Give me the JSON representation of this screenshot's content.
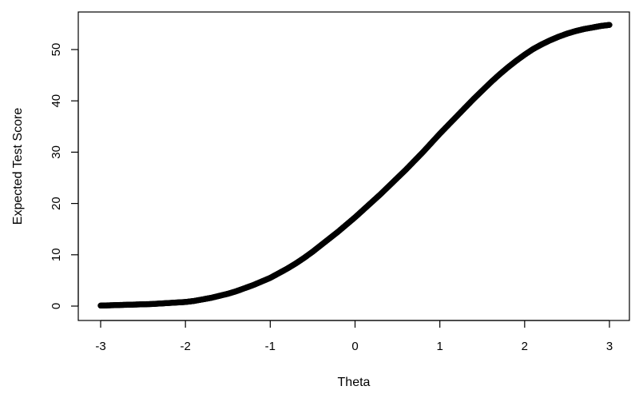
{
  "chart_data": {
    "type": "scatter",
    "title": "",
    "xlabel": "Theta",
    "ylabel": "Expected Test Score",
    "xlim": [
      -3,
      3
    ],
    "ylim": [
      0,
      55
    ],
    "xticks": [
      -3,
      -2,
      -1,
      0,
      1,
      2,
      3
    ],
    "yticks": [
      0,
      10,
      20,
      30,
      40,
      50
    ],
    "grid": false,
    "legend": "none",
    "marker": "open-circle",
    "color": "#000000",
    "series": [
      {
        "points": [
          [
            -3.0,
            0.1
          ],
          [
            -2.9,
            0.15
          ],
          [
            -2.8,
            0.2
          ],
          [
            -2.7,
            0.25
          ],
          [
            -2.6,
            0.3
          ],
          [
            -2.5,
            0.35
          ],
          [
            -2.4,
            0.4
          ],
          [
            -2.3,
            0.5
          ],
          [
            -2.2,
            0.6
          ],
          [
            -2.1,
            0.7
          ],
          [
            -2.0,
            0.8
          ],
          [
            -1.9,
            1.0
          ],
          [
            -1.8,
            1.3
          ],
          [
            -1.7,
            1.6
          ],
          [
            -1.6,
            2.0
          ],
          [
            -1.5,
            2.4
          ],
          [
            -1.4,
            2.9
          ],
          [
            -1.3,
            3.5
          ],
          [
            -1.2,
            4.1
          ],
          [
            -1.1,
            4.8
          ],
          [
            -1.0,
            5.5
          ],
          [
            -0.9,
            6.4
          ],
          [
            -0.8,
            7.3
          ],
          [
            -0.7,
            8.3
          ],
          [
            -0.6,
            9.4
          ],
          [
            -0.5,
            10.6
          ],
          [
            -0.4,
            11.9
          ],
          [
            -0.3,
            13.2
          ],
          [
            -0.2,
            14.5
          ],
          [
            -0.1,
            15.9
          ],
          [
            0.0,
            17.3
          ],
          [
            0.1,
            18.8
          ],
          [
            0.2,
            20.3
          ],
          [
            0.3,
            21.8
          ],
          [
            0.4,
            23.4
          ],
          [
            0.5,
            25.0
          ],
          [
            0.6,
            26.6
          ],
          [
            0.7,
            28.3
          ],
          [
            0.8,
            30.0
          ],
          [
            0.9,
            31.8
          ],
          [
            1.0,
            33.6
          ],
          [
            1.1,
            35.3
          ],
          [
            1.2,
            37.0
          ],
          [
            1.3,
            38.7
          ],
          [
            1.4,
            40.4
          ],
          [
            1.5,
            42.0
          ],
          [
            1.6,
            43.6
          ],
          [
            1.7,
            45.1
          ],
          [
            1.8,
            46.5
          ],
          [
            1.9,
            47.8
          ],
          [
            2.0,
            49.0
          ],
          [
            2.1,
            50.1
          ],
          [
            2.2,
            51.0
          ],
          [
            2.3,
            51.8
          ],
          [
            2.4,
            52.5
          ],
          [
            2.5,
            53.1
          ],
          [
            2.6,
            53.6
          ],
          [
            2.7,
            54.0
          ],
          [
            2.8,
            54.3
          ],
          [
            2.9,
            54.6
          ],
          [
            3.0,
            54.8
          ]
        ]
      }
    ]
  }
}
